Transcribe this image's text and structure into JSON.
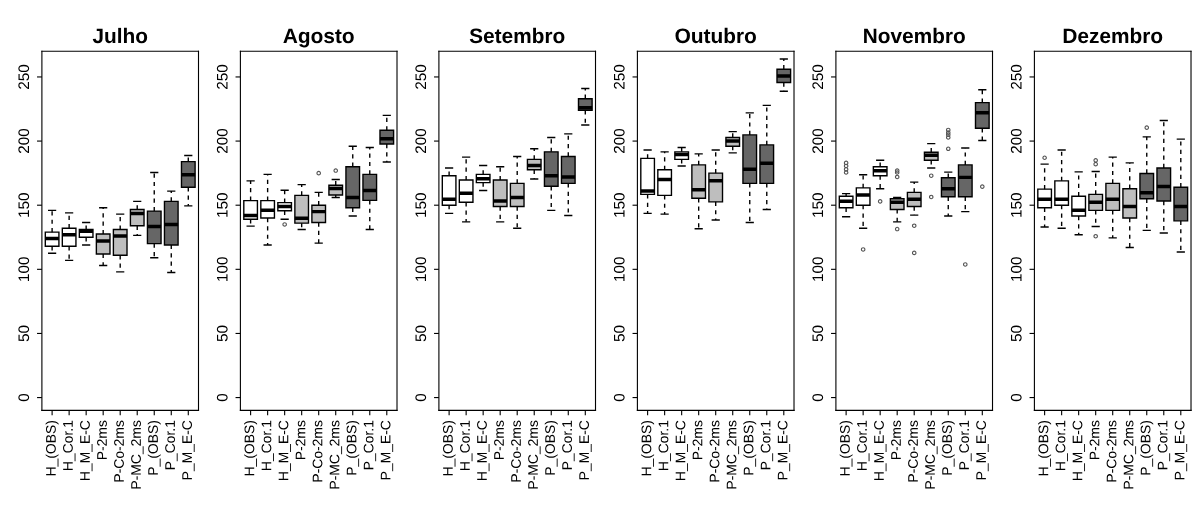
{
  "chart_data": [
    {
      "type": "box",
      "title": "Julho",
      "categories": [
        "H_(OBS)",
        "H_Cor.1",
        "H_M_E-C",
        "P-2ms",
        "P-Co-2ms",
        "P-MC_2ms",
        "P_(OBS)",
        "P_Cor.1",
        "P_M_E-C"
      ],
      "colors": [
        "#ffffff",
        "#ffffff",
        "#ffffff",
        "#bebebe",
        "#bebebe",
        "#bebebe",
        "#666666",
        "#666666",
        "#666666"
      ],
      "ylim": [
        -10,
        270
      ],
      "yticks": [
        0,
        50,
        100,
        150,
        200,
        250
      ],
      "boxes": [
        {
          "low": 112.5,
          "q1": 118,
          "median": 124,
          "q3": 129,
          "high": 146
        },
        {
          "low": 107,
          "q1": 118,
          "median": 127,
          "q3": 132,
          "high": 144
        },
        {
          "low": 119,
          "q1": 125,
          "median": 129.6,
          "q3": 131,
          "high": 136.5
        },
        {
          "low": 103,
          "q1": 112,
          "median": 122,
          "q3": 127.5,
          "high": 148
        },
        {
          "low": 98,
          "q1": 111,
          "median": 126,
          "q3": 131,
          "high": 143
        },
        {
          "low": 126.5,
          "q1": 134,
          "median": 143.6,
          "q3": 146.7,
          "high": 153
        },
        {
          "low": 109,
          "q1": 120,
          "median": 133.4,
          "q3": 145.4,
          "high": 175.5
        },
        {
          "low": 97.5,
          "q1": 119,
          "median": 135,
          "q3": 153,
          "high": 161
        },
        {
          "low": 149.5,
          "q1": 164,
          "median": 173.7,
          "q3": 184,
          "high": 188.8
        }
      ]
    },
    {
      "type": "box",
      "title": "Agosto",
      "categories": [
        "H_(OBS)",
        "H_Cor.1",
        "H_M_E-C",
        "P-2ms",
        "P-Co-2ms",
        "P-MC_2ms",
        "P_(OBS)",
        "P_Cor.1",
        "P_M_E-C"
      ],
      "colors": [
        "#ffffff",
        "#ffffff",
        "#ffffff",
        "#bebebe",
        "#bebebe",
        "#bebebe",
        "#666666",
        "#666666",
        "#666666"
      ],
      "ylim": [
        -10,
        270
      ],
      "yticks": [
        0,
        50,
        100,
        150,
        200,
        250
      ],
      "boxes": [
        {
          "low": 133.7,
          "q1": 139,
          "median": 142,
          "q3": 153.6,
          "high": 169
        },
        {
          "low": 119,
          "q1": 140,
          "median": 146,
          "q3": 153.6,
          "high": 174
        },
        {
          "low": 139,
          "q1": 145.7,
          "median": 149,
          "q3": 152,
          "high": 161.7,
          "outliers": [
            135
          ]
        },
        {
          "low": 131,
          "q1": 136,
          "median": 139.8,
          "q3": 157.7,
          "high": 166
        },
        {
          "low": 120.4,
          "q1": 136.5,
          "median": 145,
          "q3": 150,
          "high": 160,
          "outliers": [
            175
          ]
        },
        {
          "low": 156,
          "q1": 158,
          "median": 163,
          "q3": 165.6,
          "high": 170,
          "outliers": [
            177
          ]
        },
        {
          "low": 141.6,
          "q1": 148,
          "median": 156,
          "q3": 180,
          "high": 196
        },
        {
          "low": 131,
          "q1": 153.8,
          "median": 161.5,
          "q3": 174,
          "high": 195
        },
        {
          "low": 183.7,
          "q1": 197.7,
          "median": 201.8,
          "q3": 208.4,
          "high": 220
        }
      ]
    },
    {
      "type": "box",
      "title": "Setembro",
      "categories": [
        "H_(OBS)",
        "H_Cor.1",
        "H_M_E-C",
        "P-2ms",
        "P-Co-2ms",
        "P-MC_2ms",
        "P_(OBS)",
        "P_Cor.1",
        "P_M_E-C"
      ],
      "colors": [
        "#ffffff",
        "#ffffff",
        "#ffffff",
        "#bebebe",
        "#bebebe",
        "#bebebe",
        "#666666",
        "#666666",
        "#666666"
      ],
      "ylim": [
        -10,
        270
      ],
      "yticks": [
        0,
        50,
        100,
        150,
        200,
        250
      ],
      "boxes": [
        {
          "low": 143.6,
          "q1": 150,
          "median": 154.6,
          "q3": 173,
          "high": 179
        },
        {
          "low": 137,
          "q1": 152.3,
          "median": 159.4,
          "q3": 169.6,
          "high": 187.5
        },
        {
          "low": 161.5,
          "q1": 167.6,
          "median": 170.7,
          "q3": 174,
          "high": 181
        },
        {
          "low": 137,
          "q1": 149,
          "median": 153.3,
          "q3": 169.6,
          "high": 180
        },
        {
          "low": 132,
          "q1": 149,
          "median": 156,
          "q3": 167,
          "high": 188
        },
        {
          "low": 170.4,
          "q1": 177.6,
          "median": 181,
          "q3": 185.7,
          "high": 194
        },
        {
          "low": 146,
          "q1": 164.8,
          "median": 173,
          "q3": 191.6,
          "high": 202.8
        },
        {
          "low": 142,
          "q1": 167,
          "median": 172,
          "q3": 188,
          "high": 205.6
        },
        {
          "low": 212.5,
          "q1": 224,
          "median": 226,
          "q3": 233,
          "high": 241
        }
      ]
    },
    {
      "type": "box",
      "title": "Outubro",
      "categories": [
        "H_(OBS)",
        "H_Cor.1",
        "H_M_E-C",
        "P-2ms",
        "P-Co-2ms",
        "P-MC_2ms",
        "P_(OBS)",
        "P_Cor.1",
        "P_M_E-C"
      ],
      "colors": [
        "#ffffff",
        "#ffffff",
        "#ffffff",
        "#bebebe",
        "#bebebe",
        "#bebebe",
        "#666666",
        "#666666",
        "#666666"
      ],
      "ylim": [
        -10,
        270
      ],
      "yticks": [
        0,
        50,
        100,
        150,
        200,
        250
      ],
      "boxes": [
        {
          "low": 143.6,
          "q1": 158.4,
          "median": 161,
          "q3": 186.5,
          "high": 193
        },
        {
          "low": 143,
          "q1": 157.7,
          "median": 170,
          "q3": 177.6,
          "high": 191.6
        },
        {
          "low": 180.6,
          "q1": 185.7,
          "median": 189.5,
          "q3": 191.6,
          "high": 195
        },
        {
          "low": 131.6,
          "q1": 155.4,
          "median": 162,
          "q3": 181.4,
          "high": 190
        },
        {
          "low": 138.5,
          "q1": 152.6,
          "median": 169,
          "q3": 175,
          "high": 193
        },
        {
          "low": 190.8,
          "q1": 196,
          "median": 200,
          "q3": 202.8,
          "high": 207.4
        },
        {
          "low": 136.5,
          "q1": 167,
          "median": 178,
          "q3": 204.8,
          "high": 222
        },
        {
          "low": 146.7,
          "q1": 167,
          "median": 182.7,
          "q3": 197,
          "high": 227.8
        },
        {
          "low": 238.8,
          "q1": 245.7,
          "median": 250.8,
          "q3": 256,
          "high": 264
        }
      ]
    },
    {
      "type": "box",
      "title": "Novembro",
      "categories": [
        "H_(OBS)",
        "H_Cor.1",
        "H_M_E-C",
        "P-2ms",
        "P-Co-2ms",
        "P-MC_2ms",
        "P_(OBS)",
        "P_Cor.1",
        "P_M_E-C"
      ],
      "colors": [
        "#ffffff",
        "#ffffff",
        "#ffffff",
        "#bebebe",
        "#bebebe",
        "#bebebe",
        "#666666",
        "#666666",
        "#666666"
      ],
      "ylim": [
        -10,
        270
      ],
      "yticks": [
        0,
        50,
        100,
        150,
        200,
        250
      ],
      "boxes": [
        {
          "low": 141,
          "q1": 148,
          "median": 153,
          "q3": 157,
          "high": 159,
          "outliers": [
            175.5,
            178,
            180.6,
            183
          ]
        },
        {
          "low": 132,
          "q1": 150,
          "median": 158,
          "q3": 163.5,
          "high": 173.7,
          "outliers": [
            115.5
          ]
        },
        {
          "low": 162.8,
          "q1": 173,
          "median": 176.8,
          "q3": 180,
          "high": 185,
          "outliers": [
            153
          ]
        },
        {
          "low": 137,
          "q1": 146.7,
          "median": 152.3,
          "q3": 155,
          "high": 156,
          "outliers": [
            131.4,
            172,
            175.5,
            177
          ]
        },
        {
          "low": 142.3,
          "q1": 149,
          "median": 154.6,
          "q3": 160,
          "high": 168,
          "outliers": [
            112.8,
            134
          ]
        },
        {
          "low": 179,
          "q1": 185,
          "median": 189,
          "q3": 191.3,
          "high": 198,
          "outliers": [
            156.4,
            173
          ]
        },
        {
          "low": 141.6,
          "q1": 156.6,
          "median": 162.8,
          "q3": 171.4,
          "high": 175.8,
          "outliers": [
            194,
            202.8,
            205,
            206.6,
            208.7
          ]
        },
        {
          "low": 145,
          "q1": 156.6,
          "median": 171.7,
          "q3": 181.4,
          "high": 194.6,
          "outliers": [
            103.8
          ]
        },
        {
          "low": 200.5,
          "q1": 210,
          "median": 222,
          "q3": 230,
          "high": 240,
          "outliers": [
            164.5
          ]
        }
      ]
    },
    {
      "type": "box",
      "title": "Dezembro",
      "categories": [
        "H_(OBS)",
        "H_Cor.1",
        "H_M_E-C",
        "P-2ms",
        "P-Co-2ms",
        "P-MC_2ms",
        "P_(OBS)",
        "P_Cor.1",
        "P_M_E-C"
      ],
      "colors": [
        "#ffffff",
        "#ffffff",
        "#ffffff",
        "#bebebe",
        "#bebebe",
        "#bebebe",
        "#666666",
        "#666666",
        "#666666"
      ],
      "ylim": [
        -10,
        270
      ],
      "yticks": [
        0,
        50,
        100,
        150,
        200,
        250
      ],
      "boxes": [
        {
          "low": 133,
          "q1": 148,
          "median": 154.6,
          "q3": 162.5,
          "high": 182,
          "outliers": [
            187
          ]
        },
        {
          "low": 132,
          "q1": 150,
          "median": 154.6,
          "q3": 169,
          "high": 193
        },
        {
          "low": 127,
          "q1": 141.6,
          "median": 146,
          "q3": 157,
          "high": 176
        },
        {
          "low": 133.4,
          "q1": 146,
          "median": 152.3,
          "q3": 158.4,
          "high": 176.3,
          "outliers": [
            125.8,
            182,
            185
          ]
        },
        {
          "low": 124.5,
          "q1": 146,
          "median": 154.6,
          "q3": 167,
          "high": 187.5
        },
        {
          "low": 117,
          "q1": 140,
          "median": 149,
          "q3": 162.8,
          "high": 183
        },
        {
          "low": 130.4,
          "q1": 155,
          "median": 159.7,
          "q3": 174.7,
          "high": 203.3,
          "outliers": [
            210.5
          ]
        },
        {
          "low": 128.3,
          "q1": 153.3,
          "median": 164.5,
          "q3": 179,
          "high": 216
        },
        {
          "low": 113.5,
          "q1": 137.8,
          "median": 149,
          "q3": 164,
          "high": 201.5
        }
      ]
    }
  ]
}
